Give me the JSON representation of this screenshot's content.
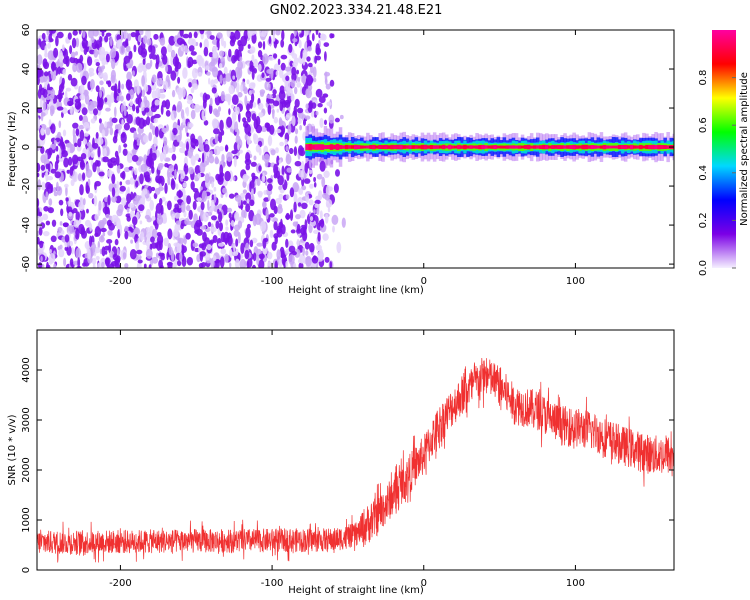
{
  "title": "GN02.2023.334.21.48.E21",
  "chart_data": [
    {
      "type": "heatmap",
      "xlabel": "Height of straight line (km)",
      "ylabel": "Frequency (Hz)",
      "xlim": [
        -255,
        165
      ],
      "ylim": [
        -62,
        60
      ],
      "x_ticks": [
        -200,
        -100,
        0,
        100
      ],
      "y_ticks": [
        -60,
        -40,
        -20,
        0,
        20,
        40,
        60
      ],
      "colorbar": {
        "label": "Normalized spectral amplitude",
        "range": [
          0,
          1
        ],
        "ticks": [
          0.0,
          0.2,
          0.4,
          0.6,
          0.8
        ],
        "colormap": [
          "#f5f0ff",
          "#7b00e6",
          "#0000ff",
          "#00d8ff",
          "#00ff00",
          "#ffff00",
          "#ff0000",
          "#ff00a0"
        ]
      },
      "regions": [
        {
          "name": "broadband noise",
          "x_range": [
            -255,
            -58
          ],
          "y_range": [
            -62,
            60
          ],
          "amplitude": 0.1
        },
        {
          "name": "narrow signal band",
          "x_range": [
            -78,
            165
          ],
          "y_center": 0,
          "half_width_hz": 3,
          "peak_amplitude": 0.95
        }
      ]
    },
    {
      "type": "line",
      "xlabel": "Height of straight line (km)",
      "ylabel": "SNR (10 * v/v)",
      "xlim": [
        -255,
        165
      ],
      "ylim": [
        0,
        4800
      ],
      "x_ticks": [
        -200,
        -100,
        0,
        100
      ],
      "y_ticks": [
        0,
        1000,
        2000,
        3000,
        4000
      ],
      "series": [
        {
          "color": "#f03030",
          "envelope_x": [
            -255,
            -150,
            -60,
            -45,
            -30,
            -15,
            0,
            10,
            25,
            40,
            50,
            60,
            75,
            90,
            110,
            130,
            150,
            165
          ],
          "envelope_y": [
            550,
            580,
            600,
            700,
            1100,
            1700,
            2300,
            2900,
            3500,
            3900,
            3700,
            3300,
            3200,
            2900,
            2800,
            2500,
            2300,
            2300
          ],
          "noise_amplitude": 500
        }
      ]
    }
  ]
}
